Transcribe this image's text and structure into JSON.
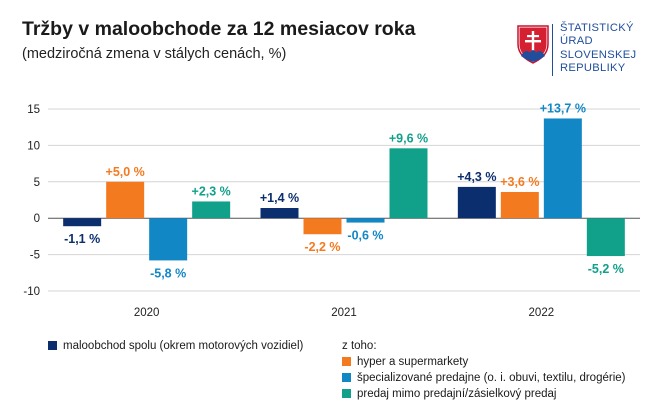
{
  "title": "Tržby v maloobchode za 12 mesiacov roka",
  "subtitle": "(medziročná zmena v stálych cenách, %)",
  "logo": {
    "lines": [
      "ŠTATISTICKÝ",
      "ÚRAD",
      "SLOVENSKEJ",
      "REPUBLIKY"
    ]
  },
  "chart_data": {
    "type": "bar",
    "categories": [
      "2020",
      "2021",
      "2022"
    ],
    "ylim": [
      -10,
      15
    ],
    "yticks": [
      "15",
      "10",
      "5",
      "0",
      "-5",
      "-10"
    ],
    "grid": true,
    "legend_position": "bottom",
    "series": [
      {
        "name": "maloobchod spolu (okrem motorových vozidiel)",
        "color": "#0b2f6e",
        "values": [
          -1.1,
          1.4,
          4.3
        ],
        "labels": [
          "-1,1 %",
          "+1,4 %",
          "+4,3 %"
        ]
      },
      {
        "name": "hyper a supermarkety",
        "color": "#f47a20",
        "values": [
          5.0,
          -2.2,
          3.6
        ],
        "labels": [
          "+5,0 %",
          "-2,2 %",
          "+3,6 %"
        ]
      },
      {
        "name": "špecializované predajne (o. i. obuvi, textilu, drogérie)",
        "color": "#1287c6",
        "values": [
          -5.8,
          -0.6,
          13.7
        ],
        "labels": [
          "-5,8 %",
          "-0,6 %",
          "+13,7 %"
        ]
      },
      {
        "name": "predaj mimo predajní/zásielkový predaj",
        "color": "#11a08a",
        "values": [
          2.3,
          9.6,
          -5.2
        ],
        "labels": [
          "+2,3 %",
          "+9,6 %",
          "-5,2 %"
        ]
      }
    ],
    "legend_subheading": "z toho:"
  }
}
